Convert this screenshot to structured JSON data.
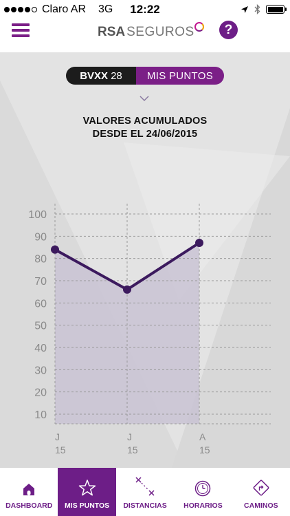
{
  "status_bar": {
    "carrier": "Claro AR",
    "network": "3G",
    "time": "12:22",
    "signal_bars": 4,
    "icons": [
      "location-arrow-icon",
      "bluetooth-icon",
      "battery-icon"
    ]
  },
  "header": {
    "logo_rsa": "RSA",
    "logo_seguros": "SEGUROS",
    "help_label": "?",
    "brand_color": "#6d1e87"
  },
  "toggle": {
    "vehicle_plate": "BVXX",
    "vehicle_number": "28",
    "points_label": "MIS PUNTOS"
  },
  "title": {
    "line1": "VALORES ACUMULADOS",
    "line2": "DESDE EL 24/06/2015"
  },
  "chart_data": {
    "type": "area",
    "categories": [
      {
        "month": "J",
        "year": "15"
      },
      {
        "month": "J",
        "year": "15"
      },
      {
        "month": "A",
        "year": "15"
      }
    ],
    "values": [
      84,
      66,
      87
    ],
    "y_ticks": [
      10,
      20,
      30,
      40,
      50,
      60,
      70,
      80,
      90,
      100
    ],
    "ylim": [
      0,
      100
    ],
    "grid": true,
    "line_color": "#3c1a5e",
    "fill_color": "#c9c3d3"
  },
  "tabs": [
    {
      "label": "DASHBOARD",
      "icon": "home-icon",
      "active": false
    },
    {
      "label": "MIS PUNTOS",
      "icon": "star-icon",
      "active": true
    },
    {
      "label": "DISTANCIAS",
      "icon": "distance-icon",
      "active": false
    },
    {
      "label": "HORARIOS",
      "icon": "clock-icon",
      "active": false
    },
    {
      "label": "CAMINOS",
      "icon": "road-sign-icon",
      "active": false
    }
  ]
}
